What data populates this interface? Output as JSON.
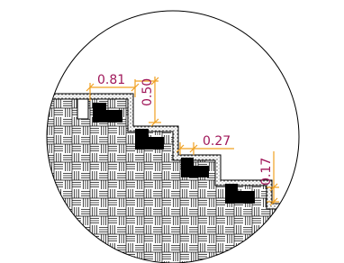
{
  "dimensions": [
    {
      "label": "0.81"
    },
    {
      "label": "0.50"
    },
    {
      "label": "0.27"
    },
    {
      "label": "0.17"
    }
  ]
}
